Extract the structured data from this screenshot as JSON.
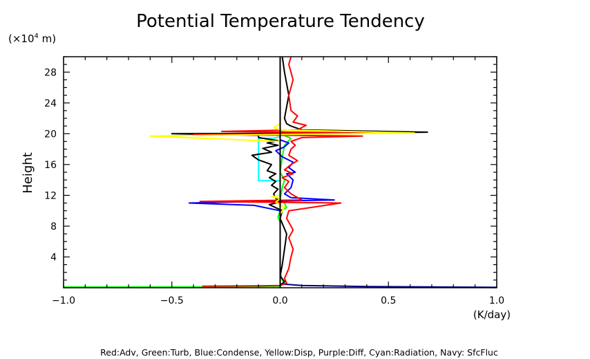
{
  "chart_data": {
    "type": "line",
    "title": "Potential Temperature Tendency",
    "xlabel": "(K/day)",
    "ylabel": "Height",
    "y_unit": "(×10",
    "y_unit_exp": "4",
    "y_unit_tail": " m)",
    "xlim": [
      -1.0,
      1.0
    ],
    "ylim": [
      0,
      30
    ],
    "xticks": [
      {
        "v": -1.0,
        "label": "−1.0"
      },
      {
        "v": -0.5,
        "label": "−0.5"
      },
      {
        "v": 0.0,
        "label": "0.0"
      },
      {
        "v": 0.5,
        "label": "0.5"
      },
      {
        "v": 1.0,
        "label": "1.0"
      }
    ],
    "yticks": [
      {
        "v": 4,
        "label": "4"
      },
      {
        "v": 8,
        "label": "8"
      },
      {
        "v": 12,
        "label": "12"
      },
      {
        "v": 16,
        "label": "16"
      },
      {
        "v": 20,
        "label": "20"
      },
      {
        "v": 24,
        "label": "24"
      },
      {
        "v": 28,
        "label": "28"
      }
    ],
    "grid": false,
    "legend_text": "Red:Adv, Green:Turb, Blue:Condense, Yellow:Disp, Purple:Diff, Cyan:Radiation, Navy: SfcFluc",
    "series": [
      {
        "key": "green",
        "color": "#00ff00",
        "points": [
          [
            -1.0,
            0.1
          ],
          [
            -0.3,
            0.12
          ],
          [
            0.0,
            0.2
          ],
          [
            0.02,
            0.6
          ],
          [
            0.01,
            1.0
          ],
          [
            0.0,
            2
          ],
          [
            0.0,
            8.5
          ],
          [
            -0.01,
            9.2
          ],
          [
            0.0,
            10
          ],
          [
            0.03,
            10.4
          ],
          [
            0.02,
            11.0
          ],
          [
            0.0,
            11.5
          ],
          [
            0.01,
            13
          ],
          [
            0.02,
            14
          ],
          [
            0.0,
            15
          ],
          [
            0.01,
            17
          ],
          [
            0.02,
            18.5
          ],
          [
            0.05,
            19.4
          ],
          [
            0.0,
            20
          ],
          [
            0.0,
            30
          ]
        ]
      },
      {
        "key": "navy",
        "color": "#000080",
        "points": [
          [
            0.0,
            0.5
          ],
          [
            0.1,
            0.3
          ],
          [
            0.4,
            0.15
          ],
          [
            1.0,
            0.05
          ]
        ]
      },
      {
        "key": "blue",
        "color": "#0000ff",
        "points": [
          [
            0.0,
            0.2
          ],
          [
            0.0,
            10.0
          ],
          [
            -0.12,
            10.7
          ],
          [
            -0.42,
            11.0
          ],
          [
            -0.1,
            11.2
          ],
          [
            0.25,
            11.4
          ],
          [
            0.05,
            11.7
          ],
          [
            0.02,
            12.2
          ],
          [
            0.05,
            13.0
          ],
          [
            0.06,
            14.0
          ],
          [
            0.03,
            14.8
          ],
          [
            0.07,
            15.0
          ],
          [
            0.04,
            15.6
          ],
          [
            0.06,
            16.3
          ],
          [
            0.01,
            17.0
          ],
          [
            -0.02,
            17.8
          ],
          [
            0.02,
            18.3
          ],
          [
            0.04,
            18.8
          ],
          [
            0.0,
            19.2
          ],
          [
            0.0,
            30
          ]
        ]
      },
      {
        "key": "cyan",
        "color": "#00ffff",
        "points": [
          [
            0.0,
            13.9
          ],
          [
            -0.1,
            13.9
          ],
          [
            -0.1,
            19.4
          ],
          [
            -0.03,
            19.4
          ],
          [
            0.0,
            19.6
          ]
        ]
      },
      {
        "key": "black",
        "color": "#000000",
        "points": [
          [
            0.0,
            0.3
          ],
          [
            0.02,
            0.8
          ],
          [
            0.0,
            1.5
          ],
          [
            0.01,
            3.0
          ],
          [
            0.02,
            5.0
          ],
          [
            0.03,
            7.0
          ],
          [
            0.0,
            9.0
          ],
          [
            0.01,
            10.0
          ],
          [
            -0.05,
            10.8
          ],
          [
            0.01,
            11.2
          ],
          [
            -0.02,
            11.6
          ],
          [
            -0.03,
            12.2
          ],
          [
            -0.01,
            12.8
          ],
          [
            -0.04,
            13.3
          ],
          [
            -0.02,
            13.8
          ],
          [
            -0.05,
            14.3
          ],
          [
            -0.02,
            14.8
          ],
          [
            -0.06,
            15.2
          ],
          [
            -0.04,
            16.0
          ],
          [
            -0.1,
            16.6
          ],
          [
            -0.13,
            17.2
          ],
          [
            -0.04,
            17.6
          ],
          [
            -0.08,
            18.1
          ],
          [
            -0.01,
            18.5
          ],
          [
            -0.06,
            18.8
          ],
          [
            -0.01,
            19.1
          ],
          [
            -0.1,
            19.5
          ],
          [
            -0.1,
            19.8
          ],
          [
            -0.5,
            20.0
          ],
          [
            0.3,
            20.1
          ],
          [
            0.68,
            20.2
          ],
          [
            0.1,
            20.5
          ],
          [
            0.05,
            21.0
          ],
          [
            0.03,
            21.3
          ],
          [
            0.02,
            22
          ],
          [
            0.04,
            25
          ],
          [
            0.02,
            28
          ],
          [
            0.01,
            30
          ]
        ]
      },
      {
        "key": "red",
        "color": "#ff0000",
        "points": [
          [
            -0.36,
            0.2
          ],
          [
            -0.1,
            0.25
          ],
          [
            0.0,
            0.3
          ],
          [
            0.03,
            0.6
          ],
          [
            0.02,
            1.2
          ],
          [
            0.04,
            2.5
          ],
          [
            0.05,
            4.0
          ],
          [
            0.06,
            5.0
          ],
          [
            0.04,
            6.5
          ],
          [
            0.06,
            7.5
          ],
          [
            0.03,
            9.0
          ],
          [
            0.04,
            10.0
          ],
          [
            0.28,
            11.0
          ],
          [
            -0.37,
            11.2
          ],
          [
            0.1,
            11.4
          ],
          [
            0.05,
            12.2
          ],
          [
            0.02,
            13.0
          ],
          [
            0.04,
            13.8
          ],
          [
            0.01,
            14.3
          ],
          [
            0.06,
            14.8
          ],
          [
            0.02,
            15.3
          ],
          [
            0.05,
            16.0
          ],
          [
            0.08,
            16.5
          ],
          [
            0.04,
            17.2
          ],
          [
            0.05,
            18.0
          ],
          [
            0.07,
            18.5
          ],
          [
            0.05,
            19.0
          ],
          [
            0.1,
            19.5
          ],
          [
            0.38,
            19.7
          ],
          [
            -0.4,
            19.9
          ],
          [
            0.45,
            20.1
          ],
          [
            -0.27,
            20.3
          ],
          [
            0.08,
            20.5
          ],
          [
            0.12,
            21.1
          ],
          [
            0.06,
            21.5
          ],
          [
            0.08,
            22.3
          ],
          [
            0.05,
            23.0
          ],
          [
            0.04,
            25.0
          ],
          [
            0.06,
            27.0
          ],
          [
            0.04,
            29.0
          ],
          [
            0.05,
            30
          ]
        ]
      },
      {
        "key": "yellow",
        "color": "#ffff00",
        "points": [
          [
            0.0,
            9.5
          ],
          [
            0.02,
            10.5
          ],
          [
            -0.02,
            11.1
          ],
          [
            0.0,
            11.6
          ],
          [
            -0.04,
            11.8
          ],
          [
            0.0,
            12.0
          ],
          [
            0.0,
            19.0
          ],
          [
            -0.6,
            19.7
          ],
          [
            0.62,
            20.1
          ],
          [
            0.0,
            20.5
          ],
          [
            -0.03,
            20.8
          ],
          [
            0.0,
            21.3
          ]
        ]
      }
    ]
  }
}
